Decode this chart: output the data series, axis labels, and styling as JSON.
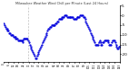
{
  "title": "Milwaukee Weather Wind Chill per Minute (Last 24 Hours)",
  "line_color": "#0000dd",
  "bg_color": "#ffffff",
  "plot_bg_color": "#ffffff",
  "grid_color": "#bbbbbb",
  "vline_color": "#aaaaaa",
  "vline_x": 30,
  "ylim": [
    -24,
    5
  ],
  "yticks": [
    -20,
    -15,
    -10,
    -5,
    0,
    5
  ],
  "ytick_labels": [
    "-20",
    "-15",
    "-10",
    "-5",
    "0",
    "5"
  ],
  "num_points": 144,
  "y_values": [
    -4,
    -5,
    -6,
    -7,
    -7,
    -8,
    -8,
    -9,
    -9,
    -10,
    -10,
    -10,
    -11,
    -11,
    -11,
    -12,
    -12,
    -12,
    -13,
    -13,
    -13,
    -13,
    -13,
    -14,
    -13,
    -12,
    -12,
    -12,
    -12,
    -12,
    -13,
    -14,
    -15,
    -16,
    -17,
    -18,
    -19,
    -20,
    -21,
    -22,
    -22,
    -21,
    -20,
    -19,
    -18,
    -17,
    -16,
    -15,
    -14,
    -13,
    -12,
    -11,
    -10,
    -9,
    -8,
    -7,
    -7,
    -6,
    -6,
    -5,
    -5,
    -5,
    -5,
    -5,
    -4,
    -4,
    -3,
    -3,
    -2,
    -2,
    -2,
    -2,
    -1,
    -1,
    -1,
    0,
    0,
    0,
    -1,
    -1,
    -1,
    -1,
    -1,
    -1,
    -1,
    -1,
    -2,
    -2,
    -2,
    -2,
    -1,
    -1,
    -1,
    -1,
    0,
    0,
    0,
    0,
    -1,
    -1,
    -2,
    -3,
    -4,
    -5,
    -6,
    -7,
    -8,
    -9,
    -10,
    -11,
    -12,
    -13,
    -14,
    -15,
    -15,
    -15,
    -15,
    -14,
    -13,
    -14,
    -15,
    -15,
    -14,
    -14,
    -13,
    -13,
    -13,
    -13,
    -13,
    -14,
    -15,
    -15,
    -15,
    -14,
    -13,
    -13,
    -13,
    -14,
    -15,
    -16,
    -17,
    -17,
    -16,
    -16
  ]
}
